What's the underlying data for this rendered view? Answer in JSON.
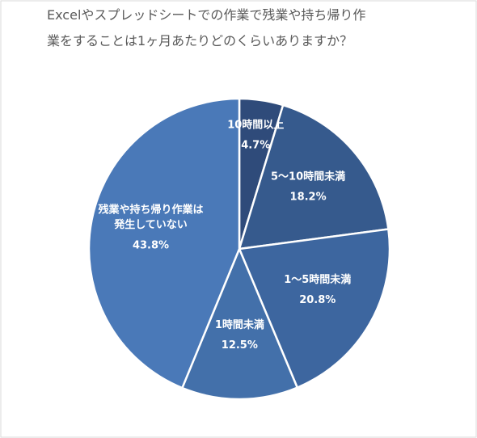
{
  "chart_data": {
    "type": "pie",
    "title": [
      "Excelやスプレッドシートでの作業で残業や持ち帰り作",
      "業をすることは1ヶ月あたりどのくらいありますか？"
    ],
    "categories": [
      "10時間以上",
      "5〜10時間未満",
      "1〜5時間未満",
      "1時間未満",
      "残業や持ち帰り作業は\n発生していない"
    ],
    "values": [
      4.7,
      18.2,
      20.8,
      12.5,
      43.8
    ],
    "value_labels": [
      "4.7%",
      "18.2%",
      "20.8%",
      "12.5%",
      "43.8%"
    ],
    "colors": [
      "#2f4b7a",
      "#365a8d",
      "#3d669f",
      "#4370aa",
      "#4a79b8"
    ]
  }
}
